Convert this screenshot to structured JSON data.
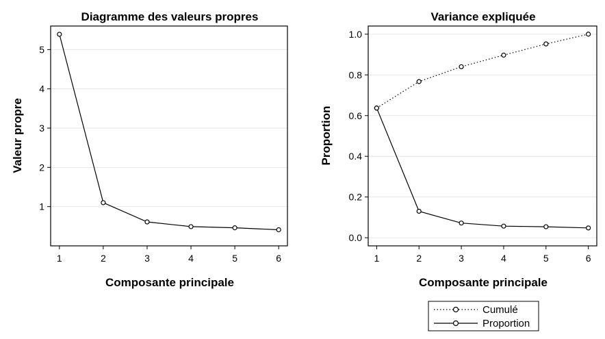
{
  "chart_data": [
    {
      "type": "line",
      "title": "Diagramme des valeurs propres",
      "xlabel": "Composante principale",
      "ylabel": "Valeur propre",
      "x": [
        1,
        2,
        3,
        4,
        5,
        6
      ],
      "xticks": [
        "1",
        "2",
        "3",
        "4",
        "5",
        "6"
      ],
      "xlim": [
        0.8,
        6.2
      ],
      "ylim": [
        0,
        5.6
      ],
      "yticks": [
        1,
        2,
        3,
        4,
        5
      ],
      "ytick_labels": [
        "1",
        "2",
        "3",
        "4",
        "5"
      ],
      "grid": true,
      "series": [
        {
          "values": [
            5.39,
            1.1,
            0.61,
            0.49,
            0.46,
            0.41
          ],
          "style": "solid"
        }
      ]
    },
    {
      "type": "line",
      "title": "Variance expliquée",
      "xlabel": "Composante principale",
      "ylabel": "Proportion",
      "x": [
        1,
        2,
        3,
        4,
        5,
        6
      ],
      "xticks": [
        "1",
        "2",
        "3",
        "4",
        "5",
        "6"
      ],
      "xlim": [
        0.8,
        6.2
      ],
      "ylim": [
        -0.04,
        1.04
      ],
      "yticks": [
        0,
        0.2,
        0.4,
        0.6,
        0.8,
        1.0
      ],
      "ytick_labels": [
        "0.0",
        "0.2",
        "0.4",
        "0.6",
        "0.8",
        "1.0"
      ],
      "grid": true,
      "legend_position": "bottom",
      "series": [
        {
          "name": "Cumulé",
          "values": [
            0.637,
            0.767,
            0.84,
            0.897,
            0.952,
            1.0
          ],
          "style": "dotted"
        },
        {
          "name": "Proportion",
          "values": [
            0.637,
            0.13,
            0.072,
            0.057,
            0.054,
            0.048
          ],
          "style": "solid"
        }
      ]
    }
  ]
}
